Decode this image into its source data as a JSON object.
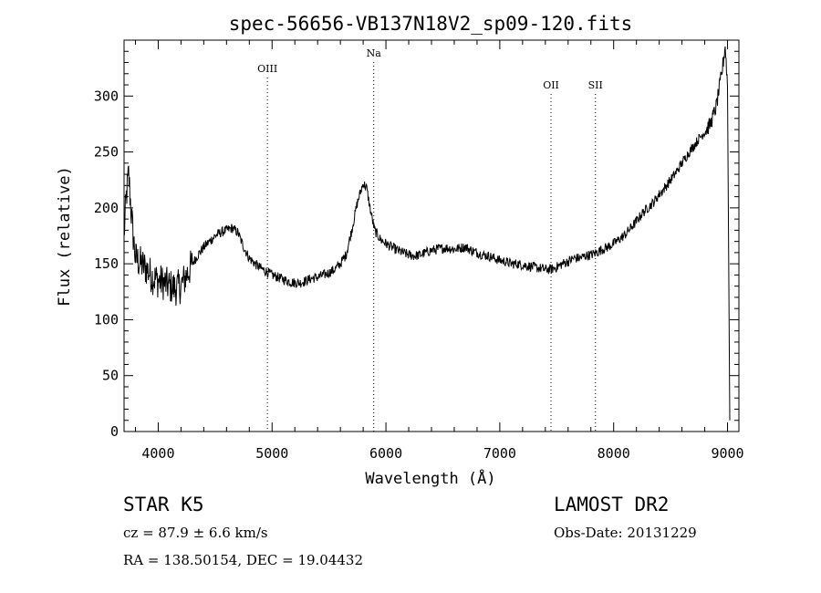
{
  "chart_data": {
    "type": "line",
    "title": "spec-56656-VB137N18V2_sp09-120.fits",
    "xlabel": "Wavelength (Å)",
    "ylabel": "Flux (relative)",
    "xlim": [
      3700,
      9100
    ],
    "ylim": [
      0,
      350
    ],
    "xticks": [
      4000,
      5000,
      6000,
      7000,
      8000,
      9000
    ],
    "yticks": [
      0,
      50,
      100,
      150,
      200,
      250,
      300
    ],
    "grid": false,
    "line_markers": [
      {
        "label": "OIII",
        "x": 4959
      },
      {
        "label": "Na",
        "x": 5893
      },
      {
        "label": "OII",
        "x": 7450
      },
      {
        "label": "SII",
        "x": 7840
      }
    ],
    "series": [
      {
        "x": [
          3700,
          3720,
          3740,
          3760,
          3780,
          3800,
          3850,
          3900,
          3950,
          4000,
          4050,
          4100,
          4150,
          4200,
          4250,
          4300,
          4350,
          4400,
          4450,
          4500,
          4550,
          4600,
          4650,
          4700,
          4750,
          4800,
          4850,
          4900,
          4950,
          5000,
          5050,
          5100,
          5150,
          5200,
          5250,
          5300,
          5350,
          5400,
          5450,
          5500,
          5550,
          5600,
          5650,
          5700,
          5750,
          5800,
          5830,
          5860,
          5900,
          5950,
          6000,
          6050,
          6100,
          6150,
          6200,
          6250,
          6300,
          6350,
          6400,
          6450,
          6500,
          6550,
          6600,
          6650,
          6700,
          6750,
          6800,
          6850,
          6900,
          6950,
          7000,
          7050,
          7100,
          7150,
          7200,
          7250,
          7300,
          7350,
          7400,
          7450,
          7500,
          7550,
          7600,
          7650,
          7700,
          7750,
          7800,
          7850,
          7900,
          7950,
          8000,
          8050,
          8100,
          8150,
          8200,
          8250,
          8300,
          8350,
          8400,
          8450,
          8500,
          8550,
          8600,
          8650,
          8700,
          8750,
          8800,
          8850,
          8900,
          8950,
          8980,
          9000,
          9020
        ],
        "y": [
          175,
          210,
          230,
          200,
          175,
          155,
          150,
          145,
          138,
          135,
          133,
          130,
          128,
          130,
          140,
          150,
          158,
          165,
          170,
          175,
          178,
          180,
          182,
          178,
          165,
          155,
          150,
          146,
          143,
          140,
          138,
          136,
          134,
          133,
          133,
          135,
          137,
          138,
          140,
          142,
          145,
          150,
          158,
          180,
          205,
          222,
          218,
          200,
          180,
          172,
          168,
          165,
          162,
          160,
          158,
          157,
          158,
          160,
          162,
          163,
          164,
          164,
          163,
          164,
          165,
          162,
          160,
          158,
          157,
          155,
          153,
          152,
          150,
          150,
          149,
          148,
          147,
          146,
          145,
          145,
          147,
          150,
          152,
          155,
          155,
          157,
          158,
          160,
          163,
          165,
          168,
          172,
          176,
          182,
          188,
          195,
          200,
          205,
          212,
          218,
          225,
          232,
          240,
          248,
          255,
          262,
          268,
          275,
          290,
          320,
          345,
          310,
          10
        ]
      }
    ]
  },
  "footer": {
    "object": "STAR    K5",
    "survey": "LAMOST DR2",
    "cz": "cz = 87.9 ± 6.6 km/s",
    "obs_date": "Obs-Date: 20131229",
    "radec": "RA = 138.50154, DEC =  19.04432"
  }
}
